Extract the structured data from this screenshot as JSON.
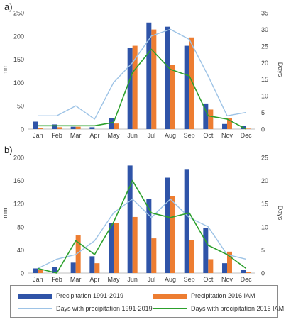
{
  "chart_data": [
    {
      "panel": "a)",
      "type": "bar",
      "categories": [
        "Jan",
        "Feb",
        "Mar",
        "Apr",
        "May",
        "Jun",
        "Jul",
        "Aug",
        "Sep",
        "Oct",
        "Nov",
        "Dec"
      ],
      "ylabel": "mm",
      "y2label": "Days",
      "ylim": [
        0,
        250
      ],
      "y2lim": [
        0,
        35
      ],
      "yticks": [
        0,
        50,
        100,
        150,
        200,
        250
      ],
      "y2ticks": [
        0,
        5,
        10,
        15,
        20,
        25,
        30,
        35
      ],
      "series": [
        {
          "name": "Precipitation 1991-2019",
          "kind": "bar",
          "axis": "left",
          "values": [
            16,
            10,
            5,
            4,
            24,
            174,
            229,
            220,
            179,
            55,
            11,
            7
          ]
        },
        {
          "name": "Precipitation 2016 IAM",
          "kind": "bar",
          "axis": "left",
          "values": [
            2,
            4,
            5,
            0,
            12,
            179,
            214,
            138,
            197,
            42,
            23,
            1
          ]
        },
        {
          "name": "Days with precipitation 1991-2019",
          "kind": "line",
          "axis": "right",
          "values": [
            4,
            4,
            7,
            3,
            14,
            20,
            28,
            30,
            27,
            16,
            4,
            5
          ]
        },
        {
          "name": "Days with precipitation 2016 IAM",
          "kind": "line",
          "axis": "right",
          "values": [
            1,
            1,
            1,
            1,
            2,
            17,
            24,
            18,
            16,
            4,
            3,
            0
          ]
        }
      ]
    },
    {
      "panel": "b)",
      "type": "bar",
      "categories": [
        "Jan",
        "Feb",
        "Mar",
        "Apr",
        "May",
        "Jun",
        "Jul",
        "Aug",
        "Sep",
        "Oct",
        "Nov",
        "Dec"
      ],
      "ylabel": "mm",
      "y2label": "Days",
      "ylim": [
        0,
        200
      ],
      "y2lim": [
        0,
        25
      ],
      "yticks": [
        0,
        40,
        80,
        120,
        160,
        200
      ],
      "y2ticks": [
        0,
        5,
        10,
        15,
        20,
        25
      ],
      "series": [
        {
          "name": "Precipitation 1991-2019",
          "kind": "bar",
          "axis": "left",
          "values": [
            8,
            10,
            18,
            29,
            86,
            186,
            128,
            165,
            180,
            78,
            17,
            5
          ]
        },
        {
          "name": "Precipitation 2016 IAM",
          "kind": "bar",
          "axis": "left",
          "values": [
            6,
            0,
            65,
            17,
            86,
            97,
            60,
            133,
            57,
            24,
            37,
            2
          ]
        },
        {
          "name": "Days with precipitation 1991-2019",
          "kind": "line",
          "axis": "right",
          "values": [
            1,
            3,
            4,
            7,
            13,
            16,
            12,
            16,
            12,
            10,
            4,
            3
          ]
        },
        {
          "name": "Days with precipitation 2016 IAM",
          "kind": "line",
          "axis": "right",
          "values": [
            1,
            0,
            7,
            4,
            11,
            20,
            13,
            12,
            13,
            6,
            4,
            1
          ]
        }
      ]
    }
  ],
  "colors": {
    "precip_1991_2019": "#2f54a8",
    "precip_2016_iam": "#ed7d31",
    "days_1991_2019": "#9dc3e6",
    "days_2016_iam": "#2ca02c",
    "axis_text": "#404040",
    "axis_line": "#bfbfbf"
  },
  "legend": {
    "items": [
      {
        "label": "Precipitation 1991-2019",
        "kind": "bar",
        "color": "#2f54a8"
      },
      {
        "label": "Precipitation 2016 IAM",
        "kind": "bar",
        "color": "#ed7d31"
      },
      {
        "label": "Days with precipitation 1991-2019",
        "kind": "line",
        "color": "#9dc3e6"
      },
      {
        "label": "Days with precipitation 2016 IAM",
        "kind": "line",
        "color": "#2ca02c"
      }
    ]
  }
}
